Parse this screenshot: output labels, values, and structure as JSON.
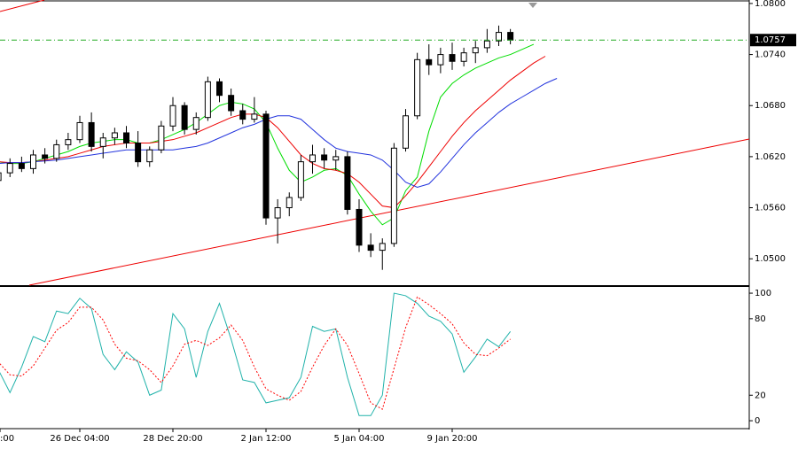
{
  "chart_data": [
    {
      "type": "candlestick",
      "categories": [
        ":00",
        null,
        null,
        null,
        null,
        null,
        null,
        null,
        "26 Dec 04:00",
        null,
        null,
        null,
        null,
        null,
        null,
        null,
        "28 Dec 20:00",
        null,
        null,
        null,
        null,
        null,
        null,
        null,
        "2 Jan 12:00",
        null,
        null,
        null,
        null,
        null,
        null,
        null,
        "5 Jan 04:00",
        null,
        null,
        null,
        null,
        null,
        null,
        null,
        "9 Jan 20:00",
        null,
        null,
        null,
        null,
        null,
        null,
        null,
        null,
        null
      ],
      "open": [
        null,
        1.0592,
        1.0601,
        1.0612,
        1.0606,
        1.0622,
        1.0618,
        1.0634,
        1.064,
        1.066,
        1.0632,
        1.0642,
        1.0648,
        1.0636,
        1.0614,
        1.0628,
        1.0656,
        1.068,
        1.0652,
        1.0666,
        1.0708,
        1.0692,
        1.0674,
        1.0664,
        1.067,
        1.0548,
        1.056,
        1.0572,
        1.0614,
        1.0622,
        1.0616,
        1.062,
        1.0558,
        1.0516,
        1.051,
        1.0518,
        1.063,
        1.0668,
        1.0734,
        1.0728,
        1.074,
        1.0732,
        1.0742,
        1.0748,
        1.0756,
        1.0766,
        null,
        null,
        null,
        null
      ],
      "high": [
        null,
        1.0606,
        1.0618,
        1.062,
        1.0628,
        1.063,
        1.064,
        1.0648,
        1.0668,
        1.0672,
        1.0648,
        1.0654,
        1.0656,
        1.065,
        1.0632,
        1.0662,
        1.069,
        1.0684,
        1.0672,
        1.0714,
        1.0712,
        1.07,
        1.0682,
        1.069,
        1.0674,
        1.057,
        1.0578,
        1.0622,
        1.0634,
        1.063,
        1.0628,
        1.0626,
        1.057,
        1.053,
        1.0524,
        1.0636,
        1.0676,
        1.0742,
        1.0752,
        1.0748,
        1.0754,
        1.0748,
        1.0756,
        1.077,
        1.0774,
        1.077,
        null,
        null,
        null,
        null
      ],
      "low": [
        null,
        1.0578,
        1.0596,
        1.0602,
        1.06,
        1.0612,
        1.0614,
        1.0628,
        1.0636,
        1.0626,
        1.0618,
        1.0634,
        1.063,
        1.0608,
        1.0608,
        1.0624,
        1.065,
        1.0646,
        1.0646,
        1.0662,
        1.0684,
        1.0668,
        1.0658,
        1.066,
        1.054,
        1.0518,
        1.055,
        1.0568,
        1.06,
        1.0606,
        1.0604,
        1.0552,
        1.0508,
        1.0502,
        1.0487,
        1.0514,
        1.0626,
        1.0664,
        1.0716,
        1.0718,
        1.0722,
        1.0726,
        1.073,
        1.0742,
        1.075,
        1.0752,
        null,
        null,
        null,
        null
      ],
      "close": [
        null,
        1.0601,
        1.0612,
        1.0606,
        1.0622,
        1.0618,
        1.0634,
        1.064,
        1.066,
        1.0632,
        1.0642,
        1.0648,
        1.0636,
        1.0614,
        1.0628,
        1.0656,
        1.068,
        1.0652,
        1.0666,
        1.0708,
        1.0692,
        1.0674,
        1.0664,
        1.067,
        1.0548,
        1.056,
        1.0572,
        1.0614,
        1.0622,
        1.0616,
        1.062,
        1.0558,
        1.0516,
        1.051,
        1.0518,
        1.063,
        1.0668,
        1.0734,
        1.0728,
        1.074,
        1.0732,
        1.0742,
        1.0748,
        1.0756,
        1.0766,
        1.0757,
        null,
        null,
        null,
        null
      ],
      "up_color": "#ffffff",
      "down_color": "#000000",
      "lines": [
        {
          "color": "#00dd00",
          "values": [
            1.0618,
            1.0614,
            1.0612,
            1.0612,
            1.0614,
            1.0618,
            1.0622,
            1.0626,
            1.0632,
            1.0636,
            1.0638,
            1.064,
            1.064,
            1.0636,
            1.0636,
            1.064,
            1.0646,
            1.0652,
            1.066,
            1.067,
            1.068,
            1.0684,
            1.0682,
            1.0676,
            1.066,
            1.063,
            1.0604,
            1.059,
            1.0596,
            1.0604,
            1.0606,
            1.0598,
            1.0576,
            1.0556,
            1.054,
            1.0548,
            1.058,
            1.0596,
            1.065,
            1.069,
            1.0706,
            1.0716,
            1.0724,
            1.073,
            1.0736,
            1.074,
            1.0746,
            1.0752,
            null,
            null
          ]
        },
        {
          "color": "#ee0000",
          "values": [
            1.0615,
            1.0614,
            1.0613,
            1.0613,
            1.0614,
            1.0616,
            1.0618,
            1.062,
            1.0624,
            1.0628,
            1.0632,
            1.0634,
            1.0636,
            1.0636,
            1.0636,
            1.0638,
            1.064,
            1.0644,
            1.0648,
            1.0654,
            1.066,
            1.0666,
            1.067,
            1.067,
            1.0666,
            1.0654,
            1.0638,
            1.0622,
            1.0612,
            1.0606,
            1.0604,
            1.06,
            1.059,
            1.0576,
            1.0562,
            1.056,
            1.0574,
            1.059,
            1.0608,
            1.0626,
            1.0644,
            1.066,
            1.0674,
            1.0686,
            1.0698,
            1.071,
            1.072,
            1.073,
            1.0738,
            null
          ]
        },
        {
          "color": "#2233dd",
          "values": [
            1.0612,
            1.0612,
            1.0613,
            1.0613,
            1.0614,
            1.0615,
            1.0616,
            1.0618,
            1.062,
            1.0622,
            1.0624,
            1.0626,
            1.0628,
            1.0628,
            1.0628,
            1.0628,
            1.0628,
            1.063,
            1.0632,
            1.0636,
            1.0642,
            1.0648,
            1.0654,
            1.0658,
            1.0664,
            1.0668,
            1.0668,
            1.0664,
            1.0652,
            1.064,
            1.063,
            1.0626,
            1.0624,
            1.0622,
            1.0616,
            1.0604,
            1.059,
            1.0584,
            1.0588,
            1.0602,
            1.0618,
            1.0634,
            1.0648,
            1.066,
            1.0672,
            1.0682,
            1.069,
            1.0698,
            1.0706,
            1.0712
          ]
        }
      ],
      "last_price": 1.0757,
      "last_price_color": "#22aa22",
      "ylim": [
        1.0469,
        1.0802
      ],
      "yticks": [
        {
          "value": 1.05,
          "label": "1.0500"
        },
        {
          "value": 1.056,
          "label": "1.0560"
        },
        {
          "value": 1.062,
          "label": "1.0620"
        },
        {
          "value": 1.068,
          "label": "1.0680"
        },
        {
          "value": 1.074,
          "label": "1.0740"
        },
        {
          "value": 1.08,
          "label": "1.0800"
        }
      ]
    },
    {
      "type": "line",
      "series": [
        {
          "color": "#20b2aa",
          "style": "solid",
          "values": [
            45,
            40,
            22,
            42,
            66,
            62,
            86,
            84,
            96,
            88,
            52,
            40,
            54,
            46,
            20,
            24,
            84,
            72,
            34,
            70,
            92,
            64,
            32,
            30,
            14,
            16,
            18,
            34,
            74,
            70,
            72,
            34,
            4,
            4,
            20,
            100,
            98,
            92,
            82,
            78,
            68,
            38,
            50,
            64,
            58,
            70,
            null,
            null,
            null,
            null
          ]
        },
        {
          "color": "#ff0000",
          "style": "dotted",
          "values": [
            48,
            46,
            36,
            35,
            43,
            57,
            71,
            77,
            89,
            89,
            79,
            60,
            49,
            47,
            40,
            30,
            43,
            60,
            63,
            59,
            65,
            75,
            63,
            42,
            25,
            20,
            16,
            23,
            42,
            59,
            72,
            59,
            37,
            14,
            9,
            41,
            73,
            97,
            91,
            84,
            76,
            61,
            52,
            51,
            57,
            64,
            null,
            null,
            null,
            null
          ]
        }
      ],
      "ylim": [
        -6.2,
        104.2
      ],
      "yticks": [
        0,
        20,
        80,
        100
      ]
    }
  ]
}
